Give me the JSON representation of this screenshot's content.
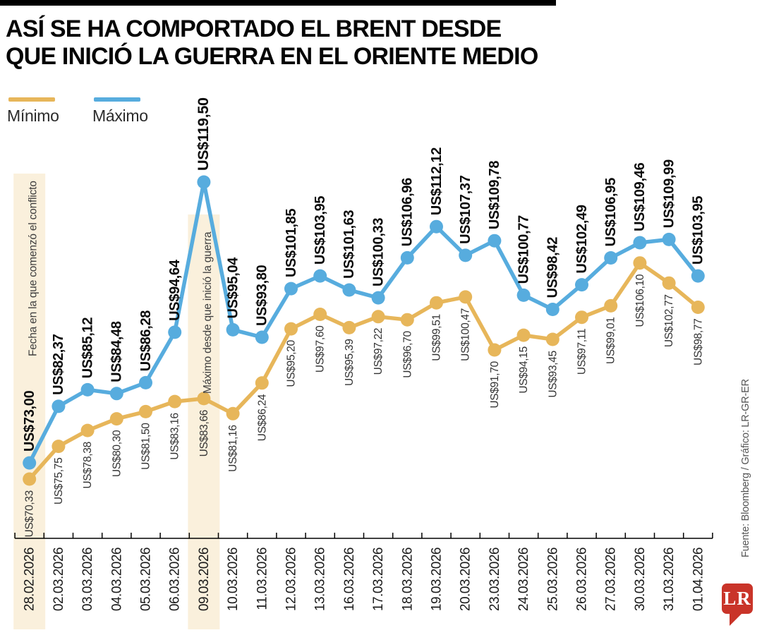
{
  "header": {
    "title_line1": "ASÍ SE HA COMPORTADO EL BRENT DESDE",
    "title_line2": "QUE INICIÓ LA GUERRA EN EL ORIENTE MEDIO"
  },
  "legend": {
    "min_label": "Mínimo",
    "max_label": "Máximo"
  },
  "source": "Fuente: Bloomberg / Gráfico: LR-GR-ER",
  "logo_text": "LR",
  "colors": {
    "min_series": "#E7B65A",
    "max_series": "#57ACDE",
    "highlight_band": "#FAF0DC",
    "lr_red": "#C93429",
    "axis": "#000000",
    "max_label": "#0a0a0a",
    "min_label": "#333333",
    "date_label": "#1a1a1a",
    "annotation": "#3d3d3d",
    "source_text": "#555555"
  },
  "chart_data": {
    "type": "line",
    "categories": [
      "28.02.2026",
      "02.03.2026",
      "03.03.2026",
      "04.03.2026",
      "05.03.2026",
      "06.03.2026",
      "09.03.2026",
      "10.03.2026",
      "11.03.2026",
      "12.03.2026",
      "13.03.2026",
      "16.03.2026",
      "17.03.2026",
      "18.03.2026",
      "19.03.2026",
      "20.03.2026",
      "23.03.2026",
      "24.03.2026",
      "25.03.2026",
      "26.03.2026",
      "27.03.2026",
      "30.03.2026",
      "31.03.2026",
      "01.04.2026"
    ],
    "series": [
      {
        "name": "Mínimo",
        "color": "#E7B65A",
        "values": [
          70.33,
          75.75,
          78.38,
          80.3,
          81.5,
          83.16,
          83.66,
          81.16,
          86.24,
          95.2,
          97.6,
          95.39,
          97.22,
          96.7,
          99.51,
          100.47,
          91.7,
          94.15,
          93.45,
          97.11,
          99.01,
          106.1,
          102.77,
          98.77
        ],
        "labels": [
          "US$70,33",
          "US$75,75",
          "US$78,38",
          "US$80,30",
          "US$81,50",
          "US$83,16",
          "US$83,66",
          "US$81,16",
          "US$86,24",
          "US$95,20",
          "US$97,60",
          "US$95,39",
          "US$97,22",
          "US$96,70",
          "US$99,51",
          "US$100,47",
          "US$91,70",
          "US$94,15",
          "US$93,45",
          "US$97,11",
          "US$99,01",
          "US$106,10",
          "US$102,77",
          "US$98,77"
        ]
      },
      {
        "name": "Máximo",
        "color": "#57ACDE",
        "values": [
          73.0,
          82.37,
          85.12,
          84.48,
          86.28,
          94.64,
          119.5,
          95.04,
          93.8,
          101.85,
          103.95,
          101.63,
          100.33,
          106.96,
          112.12,
          107.37,
          109.78,
          100.77,
          98.42,
          102.49,
          106.95,
          109.46,
          109.99,
          103.95
        ],
        "labels": [
          "US$73,00",
          "US$82,37",
          "US$85,12",
          "US$84,48",
          "US$86,28",
          "US$94,64",
          "US$119,50",
          "US$95,04",
          "US$93,80",
          "US$101,85",
          "US$103,95",
          "US$101,63",
          "US$100,33",
          "US$106,96",
          "US$112,12",
          "US$107,37",
          "US$109,78",
          "US$100,77",
          "US$98,42",
          "US$102,49",
          "US$106,95",
          "US$109,46",
          "US$109,99",
          "US$103,95"
        ]
      }
    ],
    "annotations": [
      {
        "text": "Fecha en la que comenzó el conflicto",
        "category_index": 0
      },
      {
        "text": "Máximo desde que inició la guerra",
        "category_index": 6
      }
    ],
    "highlighted_category_indexes": [
      0,
      6
    ],
    "ylim": [
      70,
      120
    ],
    "grid": false,
    "legend_position": "top-left"
  }
}
